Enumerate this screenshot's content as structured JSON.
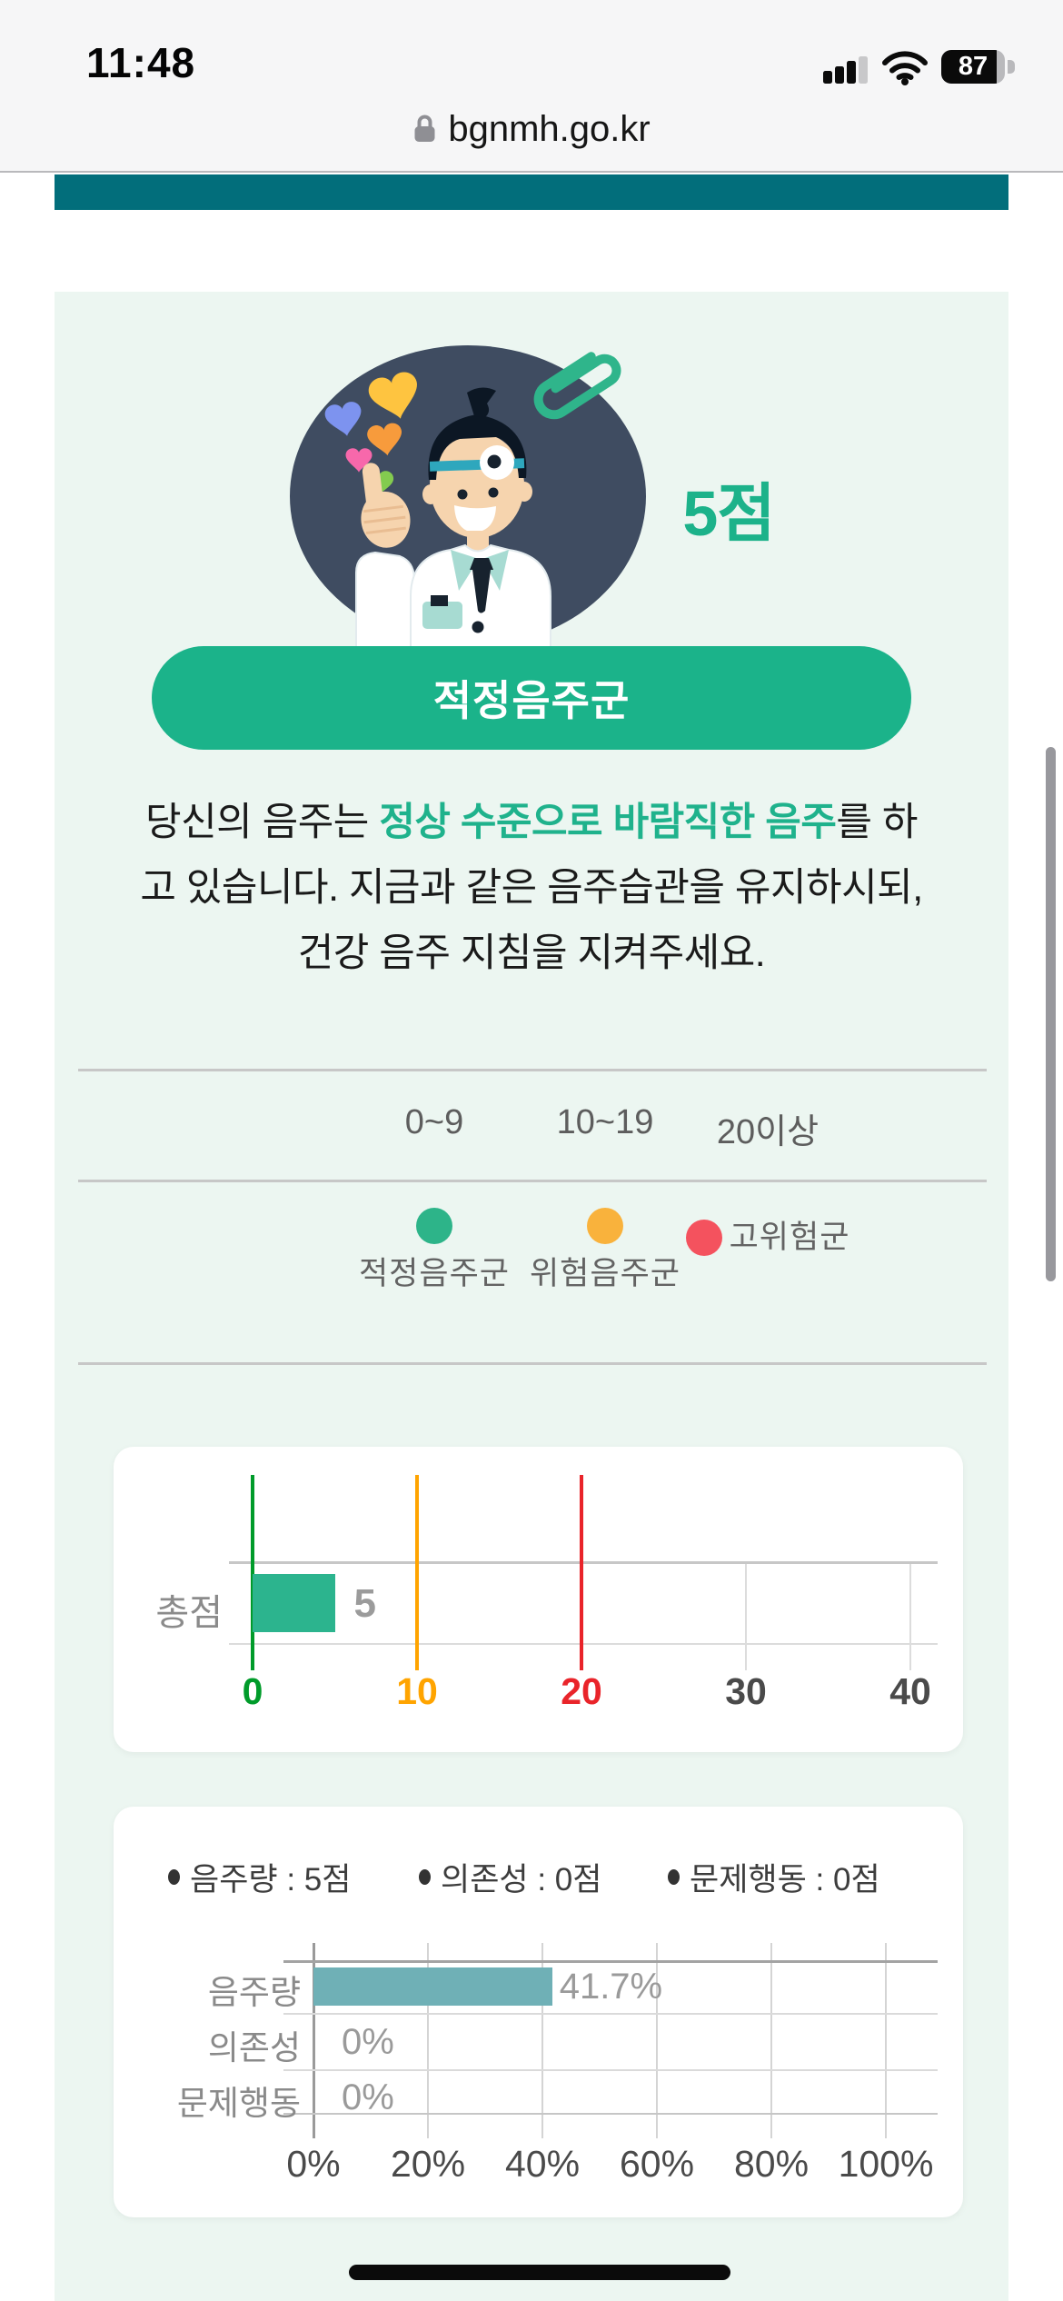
{
  "status_bar": {
    "time": "11:48",
    "battery_percent": "87",
    "signal_icon": "cellular-signal",
    "wifi_icon": "wifi"
  },
  "url_bar": {
    "lock_icon": "lock",
    "domain": "bgnmh.go.kr"
  },
  "header": {
    "bar_color": "#026e7b"
  },
  "result": {
    "illustration": "doctor-thumbs-up",
    "score": "5점",
    "category": "적정음주군",
    "message_line1_pre": "당신의 음주는 ",
    "message_line1_highlight": "정상 수준으로 바람직한 음주",
    "message_line1_post": "를 하",
    "message_line2": "고 있습니다. 지금과 같은 음주습관을 유지하시되,",
    "message_line3": "건강 음주 지침을 지켜주세요.",
    "highlight_color": "#1fb28c",
    "accent_color": "#1bb38a"
  },
  "score_table": {
    "ranges": [
      "0~9",
      "10~19",
      "20이상"
    ],
    "legend": [
      {
        "label": "적정음주군",
        "color": "#2db489"
      },
      {
        "label": "위험음주군",
        "color": "#f9b23c"
      },
      {
        "label": "고위험군",
        "color": "#f4525e"
      }
    ]
  },
  "chart_data": [
    {
      "type": "bar",
      "orientation": "horizontal",
      "categories": [
        "총점"
      ],
      "values": [
        5
      ],
      "value_labels": [
        "5"
      ],
      "xlim": [
        0,
        40
      ],
      "bar_color": "#2cb48e",
      "grid": true,
      "x_ticks": [
        {
          "value": 0,
          "label": "0",
          "color": "#009b2a"
        },
        {
          "value": 10,
          "label": "10",
          "color": "#ffa400"
        },
        {
          "value": 20,
          "label": "20",
          "color": "#e9242a"
        },
        {
          "value": 30,
          "label": "30",
          "color": "#4a4a4a"
        },
        {
          "value": 40,
          "label": "40",
          "color": "#4a4a4a"
        }
      ],
      "threshold_lines": [
        {
          "value": 0,
          "color": "#009b2a"
        },
        {
          "value": 10,
          "color": "#ffa400"
        },
        {
          "value": 20,
          "color": "#e9242a"
        }
      ]
    },
    {
      "type": "bar",
      "orientation": "horizontal",
      "legend": [
        "음주량 : 5점",
        "의존성 : 0점",
        "문제행동 : 0점"
      ],
      "categories": [
        "음주량",
        "의존성",
        "문제행동"
      ],
      "values": [
        41.7,
        0,
        0
      ],
      "value_labels": [
        "41.7%",
        "0%",
        "0%"
      ],
      "xlim": [
        0,
        100
      ],
      "bar_color": "#6fb0b6",
      "grid": true,
      "x_ticks": [
        {
          "value": 0,
          "label": "0%"
        },
        {
          "value": 20,
          "label": "20%"
        },
        {
          "value": 40,
          "label": "40%"
        },
        {
          "value": 60,
          "label": "60%"
        },
        {
          "value": 80,
          "label": "80%"
        },
        {
          "value": 100,
          "label": "100%"
        }
      ]
    }
  ]
}
